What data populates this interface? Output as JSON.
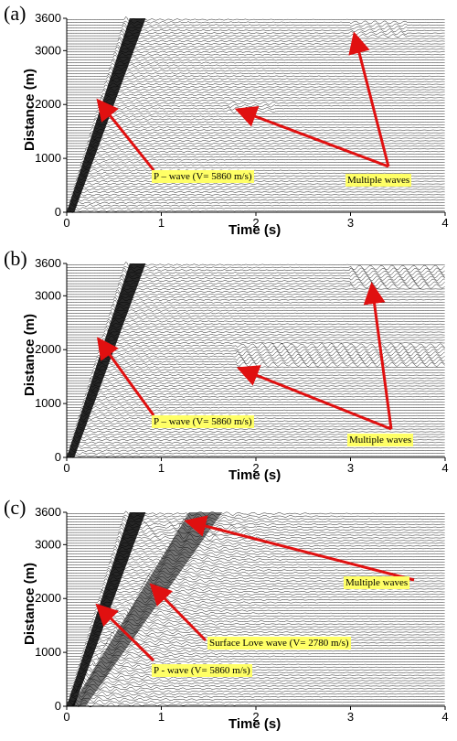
{
  "figure": {
    "panels": [
      {
        "id": "a",
        "label": "(a)",
        "xlabel": "Time (s)",
        "ylabel": "Distance (m)",
        "xticks": [
          "0",
          "1",
          "2",
          "3",
          "4"
        ],
        "yticks": [
          "0",
          "1000",
          "2000",
          "3000",
          "3600"
        ],
        "annotations": [
          "P – wave (V= 5860 m/s)",
          "Multiple waves"
        ]
      },
      {
        "id": "b",
        "label": "(b)",
        "xlabel": "Time (s)",
        "ylabel": "Distance (m)",
        "xticks": [
          "0",
          "1",
          "2",
          "3",
          "4"
        ],
        "yticks": [
          "0",
          "1000",
          "2000",
          "3000",
          "3600"
        ],
        "annotations": [
          "P – wave (V= 5860 m/s)",
          "Multiple waves"
        ]
      },
      {
        "id": "c",
        "label": "(c)",
        "xlabel": "Time (s)",
        "ylabel": "Distance (m)",
        "xticks": [
          "0",
          "1",
          "2",
          "3",
          "4"
        ],
        "yticks": [
          "0",
          "1000",
          "2000",
          "3000",
          "3600"
        ],
        "annotations": [
          "Multiple waves",
          "Surface Love wave (V= 2780 m/s)",
          "P - wave (V= 5860 m/s)"
        ]
      }
    ]
  },
  "colors": {
    "arrow": "#e01010",
    "annotation_bg": "#ffff66",
    "trace": "#000000"
  }
}
